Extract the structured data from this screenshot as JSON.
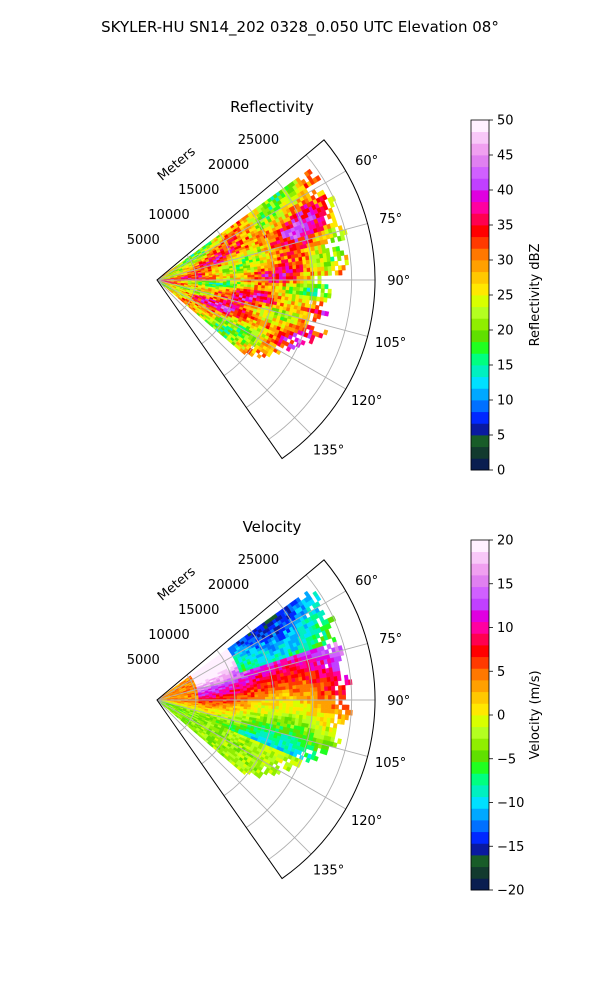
{
  "figure": {
    "suptitle": "SKYLER-HU  SN14_202  0328_0.050 UTC Elevation 08°"
  },
  "chart_data": [
    {
      "type": "polar-sector-heatmap",
      "title": "Reflectivity",
      "radial_label": "Meters",
      "r_ticks": [
        5000,
        10000,
        15000,
        20000,
        25000
      ],
      "r_tick_labels": [
        "5000",
        "10000",
        "15000",
        "20000",
        "25000"
      ],
      "rlim": [
        0,
        28000
      ],
      "theta_range_deg": [
        50,
        145
      ],
      "theta_ticks": [
        60,
        75,
        90,
        105,
        120,
        135
      ],
      "theta_tick_labels": [
        "60°",
        "75°",
        "90°",
        "105°",
        "120°",
        "135°"
      ],
      "data_extent_deg": [
        54,
        130
      ],
      "data_extent_m": 25000,
      "colorbar": {
        "label": "Reflectivity dBZ",
        "range": [
          0,
          50
        ],
        "ticks": [
          0,
          5,
          10,
          15,
          20,
          25,
          30,
          35,
          40,
          45,
          50
        ],
        "tick_labels": [
          "0",
          "5",
          "10",
          "15",
          "20",
          "25",
          "30",
          "35",
          "40",
          "45",
          "50"
        ],
        "colors": [
          "#0a1e50",
          "#123a2e",
          "#185c28",
          "#0a1aa0",
          "#0028ff",
          "#0070ff",
          "#00a8ff",
          "#00e0ff",
          "#00f0c0",
          "#00ff80",
          "#20ff20",
          "#60e000",
          "#90ee00",
          "#b4ff20",
          "#d8ff00",
          "#ffe800",
          "#ffc800",
          "#ffa000",
          "#ff7800",
          "#ff3a00",
          "#ff0000",
          "#ff0050",
          "#ff00a0",
          "#e000e0",
          "#c040ff",
          "#d060ff",
          "#e080f0",
          "#f0a0f0",
          "#f8c8f8",
          "#fff0ff"
        ]
      }
    },
    {
      "type": "polar-sector-heatmap",
      "title": "Velocity",
      "radial_label": "Meters",
      "r_ticks": [
        5000,
        10000,
        15000,
        20000,
        25000
      ],
      "r_tick_labels": [
        "5000",
        "10000",
        "15000",
        "20000",
        "25000"
      ],
      "rlim": [
        0,
        28000
      ],
      "theta_range_deg": [
        50,
        145
      ],
      "theta_ticks": [
        60,
        75,
        90,
        105,
        120,
        135
      ],
      "theta_tick_labels": [
        "60°",
        "75°",
        "90°",
        "105°",
        "120°",
        "135°"
      ],
      "data_extent_deg": [
        54,
        130
      ],
      "data_extent_m": 25000,
      "colorbar": {
        "label": "Velocity (m/s)",
        "range": [
          -20,
          20
        ],
        "ticks": [
          -20,
          -15,
          -10,
          -5,
          0,
          5,
          10,
          15,
          20
        ],
        "tick_labels": [
          "−20",
          "−15",
          "−10",
          "−5",
          "0",
          "5",
          "10",
          "15",
          "20"
        ],
        "colors": [
          "#0a1e50",
          "#123a2e",
          "#185c28",
          "#0a1aa0",
          "#0028ff",
          "#0070ff",
          "#00a8ff",
          "#00e0ff",
          "#00f0c0",
          "#00ff80",
          "#20ff20",
          "#60e000",
          "#90ee00",
          "#b4ff20",
          "#d8ff00",
          "#ffe800",
          "#ffc800",
          "#ffa000",
          "#ff7800",
          "#ff3a00",
          "#ff0000",
          "#ff0050",
          "#ff00a0",
          "#e000e0",
          "#c040ff",
          "#d060ff",
          "#e080f0",
          "#f0a0f0",
          "#f8c8f8",
          "#fff0ff"
        ]
      }
    }
  ]
}
